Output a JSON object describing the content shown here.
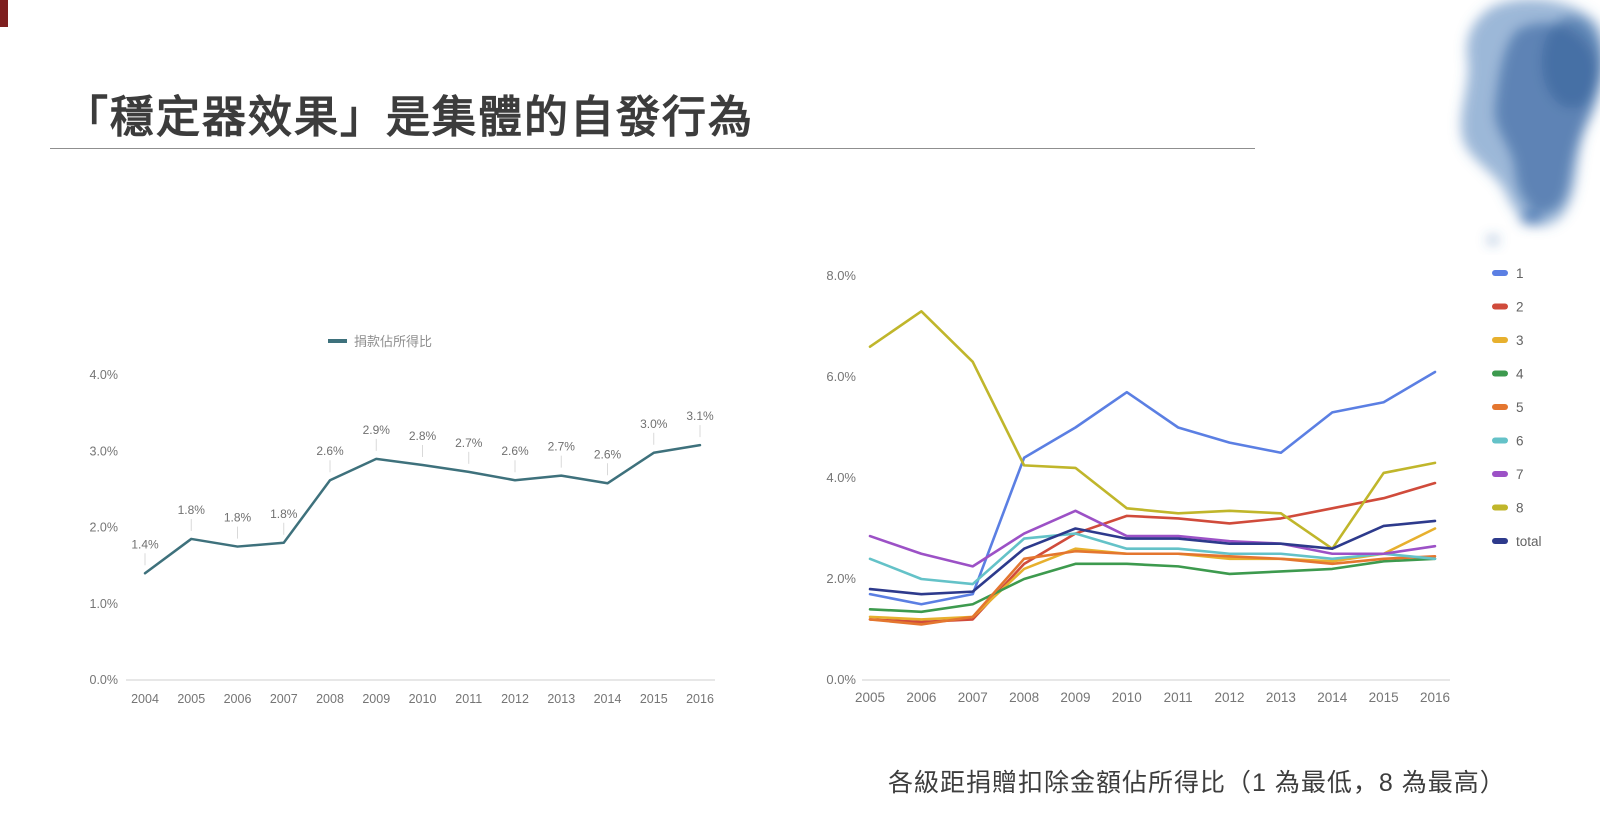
{
  "page": {
    "title": "「穩定器效果」是集體的自發行為",
    "caption": "各級距捐贈扣除金額佔所得比（1 為最低，8 為最高）"
  },
  "chart_data": [
    {
      "name": "donation-share-of-income",
      "type": "line",
      "title": "",
      "legend": "捐款佔所得比",
      "legend_position": "top",
      "color": "#3e717c",
      "categories": [
        "2004",
        "2005",
        "2006",
        "2007",
        "2008",
        "2009",
        "2010",
        "2011",
        "2012",
        "2013",
        "2014",
        "2015",
        "2016"
      ],
      "values": [
        1.4,
        1.85,
        1.75,
        1.8,
        2.62,
        2.9,
        2.82,
        2.73,
        2.62,
        2.68,
        2.58,
        2.98,
        3.08
      ],
      "labels": [
        "1.4%",
        "1.8%",
        "1.8%",
        "1.8%",
        "2.6%",
        "2.9%",
        "2.8%",
        "2.7%",
        "2.6%",
        "2.7%",
        "2.6%",
        "3.0%",
        "3.1%"
      ],
      "xlabel": "",
      "ylabel": "",
      "ylim": [
        0,
        4
      ],
      "yticks": [
        "0.0%",
        "1.0%",
        "2.0%",
        "3.0%",
        "4.0%"
      ],
      "grid": false
    },
    {
      "name": "deduction-share-by-bracket",
      "type": "line",
      "title": "",
      "legend_position": "right",
      "categories": [
        "2005",
        "2006",
        "2007",
        "2008",
        "2009",
        "2010",
        "2011",
        "2012",
        "2013",
        "2014",
        "2015",
        "2016"
      ],
      "series": [
        {
          "name": "1",
          "color": "#5b7fe3",
          "values": [
            1.7,
            1.5,
            1.7,
            4.4,
            5.0,
            5.7,
            5.0,
            4.7,
            4.5,
            5.3,
            5.5,
            6.1
          ]
        },
        {
          "name": "2",
          "color": "#d04b3b",
          "values": [
            1.2,
            1.15,
            1.2,
            2.3,
            2.9,
            3.25,
            3.2,
            3.1,
            3.2,
            3.4,
            3.6,
            3.9
          ]
        },
        {
          "name": "3",
          "color": "#e7b02e",
          "values": [
            1.25,
            1.2,
            1.25,
            2.2,
            2.6,
            2.5,
            2.5,
            2.4,
            2.4,
            2.35,
            2.5,
            3.0
          ]
        },
        {
          "name": "4",
          "color": "#3d9a4e",
          "values": [
            1.4,
            1.35,
            1.5,
            2.0,
            2.3,
            2.3,
            2.25,
            2.1,
            2.15,
            2.2,
            2.35,
            2.4
          ]
        },
        {
          "name": "5",
          "color": "#e4762f",
          "values": [
            1.2,
            1.1,
            1.25,
            2.4,
            2.55,
            2.5,
            2.5,
            2.45,
            2.4,
            2.3,
            2.4,
            2.45
          ]
        },
        {
          "name": "6",
          "color": "#64c2c8",
          "values": [
            2.4,
            2.0,
            1.9,
            2.8,
            2.9,
            2.6,
            2.6,
            2.5,
            2.5,
            2.4,
            2.5,
            2.4
          ]
        },
        {
          "name": "7",
          "color": "#9c51c6",
          "values": [
            2.85,
            2.5,
            2.25,
            2.9,
            3.35,
            2.85,
            2.85,
            2.75,
            2.7,
            2.5,
            2.5,
            2.65
          ]
        },
        {
          "name": "8",
          "color": "#c0b62b",
          "values": [
            6.6,
            7.3,
            6.3,
            4.25,
            4.2,
            3.4,
            3.3,
            3.35,
            3.3,
            2.6,
            4.1,
            4.3
          ]
        },
        {
          "name": "total",
          "color": "#2d3a8c",
          "values": [
            1.8,
            1.7,
            1.75,
            2.6,
            3.0,
            2.8,
            2.8,
            2.7,
            2.7,
            2.6,
            3.05,
            3.15
          ]
        }
      ],
      "xlabel": "",
      "ylabel": "",
      "ylim": [
        0,
        8
      ],
      "yticks": [
        "0.0%",
        "2.0%",
        "4.0%",
        "6.0%",
        "8.0%"
      ],
      "grid": false
    }
  ]
}
